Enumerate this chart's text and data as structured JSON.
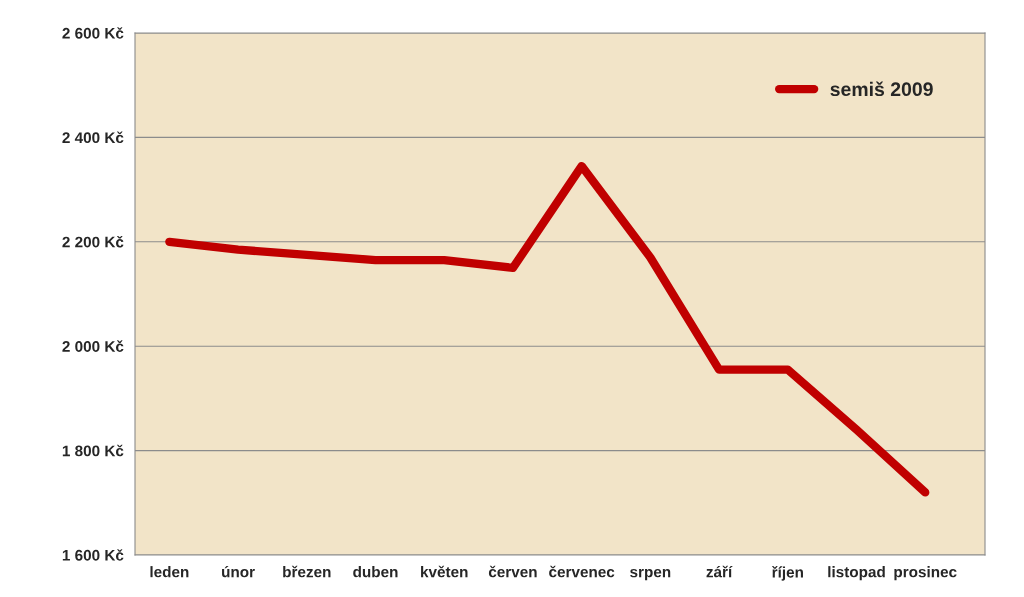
{
  "chart_data": {
    "type": "line",
    "categories": [
      "leden",
      "únor",
      "březen",
      "duben",
      "květen",
      "červen",
      "červenec",
      "srpen",
      "září",
      "říjen",
      "listopad",
      "prosinec"
    ],
    "series": [
      {
        "name": "semiš 2009",
        "color": "#c00000",
        "values": [
          2200,
          2185,
          2175,
          2165,
          2165,
          2150,
          2345,
          2170,
          1955,
          1955,
          1840,
          1720
        ]
      }
    ],
    "ylim": [
      1600,
      2600
    ],
    "yticks": [
      {
        "value": 1600,
        "label": "1 600 Kč"
      },
      {
        "value": 1800,
        "label": "1 800 Kč"
      },
      {
        "value": 2000,
        "label": "2 000 Kč"
      },
      {
        "value": 2200,
        "label": "2 200 Kč"
      },
      {
        "value": 2400,
        "label": "2 400 Kč"
      },
      {
        "value": 2600,
        "label": "2 600 Kč"
      }
    ],
    "grid": "y",
    "legend": "top right",
    "marker": "none",
    "line_style": "solid"
  }
}
